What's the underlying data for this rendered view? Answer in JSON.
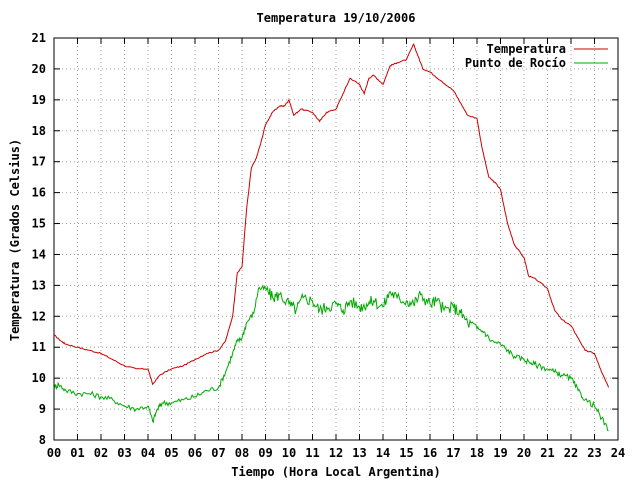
{
  "chart_data": {
    "type": "line",
    "title": "Temperatura 19/10/2006",
    "xlabel": "Tiempo (Hora Local Argentina)",
    "ylabel": "Temperatura (Grados Celsius)",
    "xlim": [
      0,
      24
    ],
    "ylim": [
      8,
      21
    ],
    "x_ticks": [
      "00",
      "01",
      "02",
      "03",
      "04",
      "05",
      "06",
      "07",
      "08",
      "09",
      "10",
      "11",
      "12",
      "13",
      "14",
      "15",
      "16",
      "17",
      "18",
      "19",
      "20",
      "21",
      "22",
      "23",
      "24"
    ],
    "y_ticks": [
      8,
      9,
      10,
      11,
      12,
      13,
      14,
      15,
      16,
      17,
      18,
      19,
      20,
      21
    ],
    "grid": true,
    "legend_position": "top-right",
    "series": [
      {
        "name": "Temperatura",
        "color": "#cc0000",
        "x": [
          0.0,
          0.3,
          0.5,
          1.0,
          1.5,
          2.0,
          2.5,
          3.0,
          3.5,
          4.0,
          4.2,
          4.5,
          5.0,
          5.5,
          6.0,
          6.5,
          7.0,
          7.3,
          7.6,
          7.8,
          8.0,
          8.2,
          8.4,
          8.6,
          8.8,
          9.0,
          9.3,
          9.6,
          9.8,
          10.0,
          10.2,
          10.5,
          11.0,
          11.3,
          11.6,
          12.0,
          12.3,
          12.6,
          13.0,
          13.2,
          13.4,
          13.6,
          14.0,
          14.3,
          14.6,
          15.0,
          15.3,
          15.5,
          15.7,
          16.0,
          16.5,
          17.0,
          17.3,
          17.6,
          18.0,
          18.2,
          18.5,
          18.8,
          19.0,
          19.3,
          19.6,
          20.0,
          20.2,
          20.5,
          21.0,
          21.3,
          21.6,
          22.0,
          22.3,
          22.6,
          23.0,
          23.3,
          23.6
        ],
        "values": [
          11.4,
          11.2,
          11.1,
          11.0,
          10.9,
          10.8,
          10.6,
          10.4,
          10.3,
          10.3,
          9.8,
          10.1,
          10.3,
          10.4,
          10.6,
          10.8,
          10.9,
          11.2,
          12.0,
          13.4,
          13.6,
          15.5,
          16.8,
          17.1,
          17.6,
          18.2,
          18.6,
          18.8,
          18.8,
          19.0,
          18.5,
          18.7,
          18.6,
          18.3,
          18.6,
          18.7,
          19.2,
          19.7,
          19.5,
          19.2,
          19.7,
          19.8,
          19.5,
          20.1,
          20.2,
          20.3,
          20.8,
          20.4,
          20.0,
          19.9,
          19.6,
          19.3,
          18.9,
          18.5,
          18.4,
          17.5,
          16.5,
          16.3,
          16.1,
          15.0,
          14.3,
          13.9,
          13.3,
          13.2,
          12.9,
          12.2,
          11.9,
          11.7,
          11.3,
          10.9,
          10.8,
          10.2,
          9.7
        ]
      },
      {
        "name": "Punto de Rocío",
        "color": "#00aa00",
        "x": [
          0.0,
          0.2,
          0.5,
          1.0,
          1.5,
          2.0,
          2.5,
          3.0,
          3.5,
          4.0,
          4.2,
          4.4,
          4.6,
          5.0,
          5.5,
          6.0,
          6.5,
          7.0,
          7.3,
          7.6,
          7.8,
          8.0,
          8.2,
          8.5,
          8.7,
          9.0,
          9.3,
          9.6,
          10.0,
          10.3,
          10.6,
          11.0,
          11.3,
          11.6,
          12.0,
          12.3,
          12.6,
          13.0,
          13.3,
          13.6,
          14.0,
          14.3,
          14.6,
          15.0,
          15.3,
          15.6,
          16.0,
          16.3,
          16.6,
          17.0,
          17.3,
          17.6,
          18.0,
          18.3,
          18.6,
          19.0,
          19.3,
          19.6,
          20.0,
          20.3,
          20.6,
          21.0,
          21.3,
          21.6,
          22.0,
          22.3,
          22.6,
          23.0,
          23.3,
          23.6
        ],
        "values": [
          9.7,
          9.8,
          9.6,
          9.5,
          9.5,
          9.4,
          9.3,
          9.1,
          9.0,
          9.1,
          8.6,
          9.0,
          9.2,
          9.2,
          9.3,
          9.4,
          9.6,
          9.7,
          10.2,
          10.8,
          11.2,
          11.3,
          11.8,
          12.1,
          12.9,
          12.9,
          12.6,
          12.7,
          12.4,
          12.2,
          12.6,
          12.5,
          12.2,
          12.3,
          12.4,
          12.2,
          12.5,
          12.3,
          12.4,
          12.5,
          12.3,
          12.8,
          12.6,
          12.5,
          12.4,
          12.7,
          12.4,
          12.5,
          12.2,
          12.3,
          12.1,
          11.8,
          11.6,
          11.5,
          11.2,
          11.1,
          10.9,
          10.7,
          10.6,
          10.5,
          10.4,
          10.3,
          10.2,
          10.1,
          10.0,
          9.6,
          9.3,
          9.1,
          8.7,
          8.3
        ]
      }
    ]
  }
}
